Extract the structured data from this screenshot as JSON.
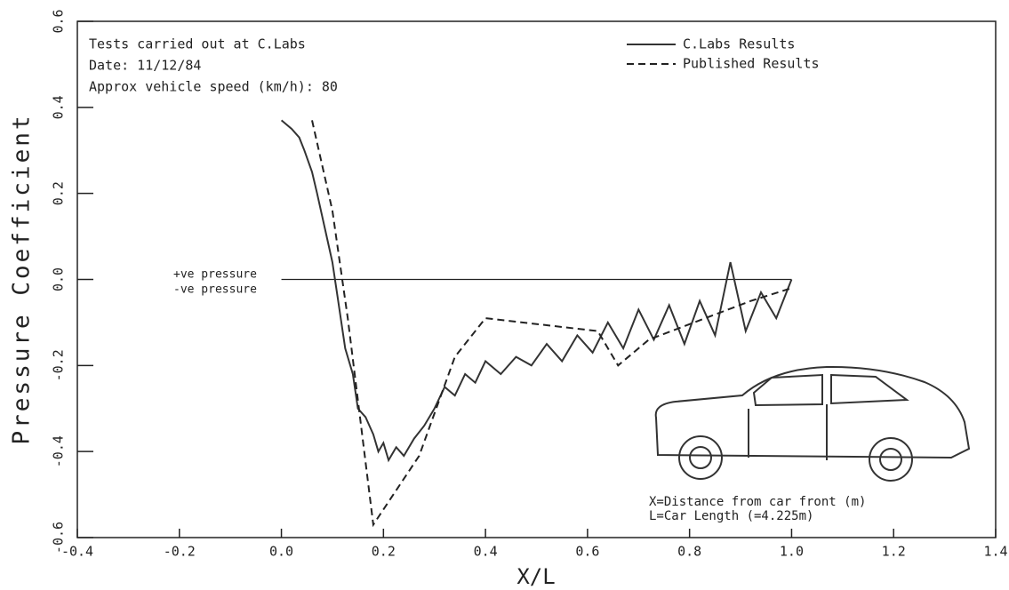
{
  "chart_data": {
    "type": "line",
    "y_label": "Pressure Coefficient",
    "x_label": "X/L",
    "annotations": [
      "Tests carried out at C.Labs",
      "Date: 11/12/84",
      "Approx vehicle speed (km/h): 80",
      "+ve pressure",
      "-ve pressure",
      "X=Distance from car front (m)",
      "L=Car Length (=4.225m)"
    ],
    "xlim": [
      -0.4,
      1.4
    ],
    "ylim": [
      -0.6,
      0.6
    ],
    "xticks": [
      -0.4,
      -0.2,
      {
        "value": 0,
        "label": "0.0"
      },
      0.2,
      0.4,
      0.6,
      0.8,
      {
        "value": 1,
        "label": "1.0"
      },
      1.2,
      1.4
    ],
    "yticks": [
      -0.6,
      -0.4,
      -0.2,
      {
        "value": 0,
        "label": "0.0"
      },
      0.2,
      0.4,
      0.6
    ],
    "series": [
      {
        "name": "C.Labs Results",
        "color": "#333333",
        "dash": false,
        "x": [
          0,
          0.02,
          0.035,
          0.045,
          0.06,
          0.07,
          0.085,
          0.1,
          0.11,
          0.125,
          0.14,
          0.15,
          0.165,
          0.18,
          0.19,
          0.2,
          0.21,
          0.225,
          0.24,
          0.26,
          0.28,
          0.3,
          0.32,
          0.34,
          0.36,
          0.38,
          0.4,
          0.43,
          0.46,
          0.49,
          0.52,
          0.55,
          0.58,
          0.61,
          0.64,
          0.67,
          0.7,
          0.73,
          0.76,
          0.79,
          0.82,
          0.85,
          0.88,
          0.91,
          0.94,
          0.97,
          1.0
        ],
        "values": [
          0.37,
          0.35,
          0.33,
          0.3,
          0.25,
          0.2,
          0.12,
          0.04,
          -0.04,
          -0.16,
          -0.22,
          -0.3,
          -0.32,
          -0.36,
          -0.4,
          -0.38,
          -0.42,
          -0.39,
          -0.41,
          -0.37,
          -0.34,
          -0.3,
          -0.25,
          -0.27,
          -0.22,
          -0.24,
          -0.19,
          -0.22,
          -0.18,
          -0.2,
          -0.15,
          -0.19,
          -0.13,
          -0.17,
          -0.1,
          -0.16,
          -0.07,
          -0.14,
          -0.06,
          -0.15,
          -0.05,
          -0.13,
          0.04,
          -0.12,
          -0.03,
          -0.09,
          0.0
        ]
      },
      {
        "name": "Published Results",
        "color": "#222222",
        "dash": true,
        "x": [
          0.06,
          0.1,
          0.13,
          0.18,
          0.27,
          0.34,
          0.4,
          0.62,
          0.66,
          0.72,
          0.92,
          1.0
        ],
        "values": [
          0.37,
          0.16,
          -0.09,
          -0.57,
          -0.41,
          -0.18,
          -0.09,
          -0.12,
          -0.2,
          -0.14,
          -0.05,
          -0.02
        ]
      }
    ]
  }
}
